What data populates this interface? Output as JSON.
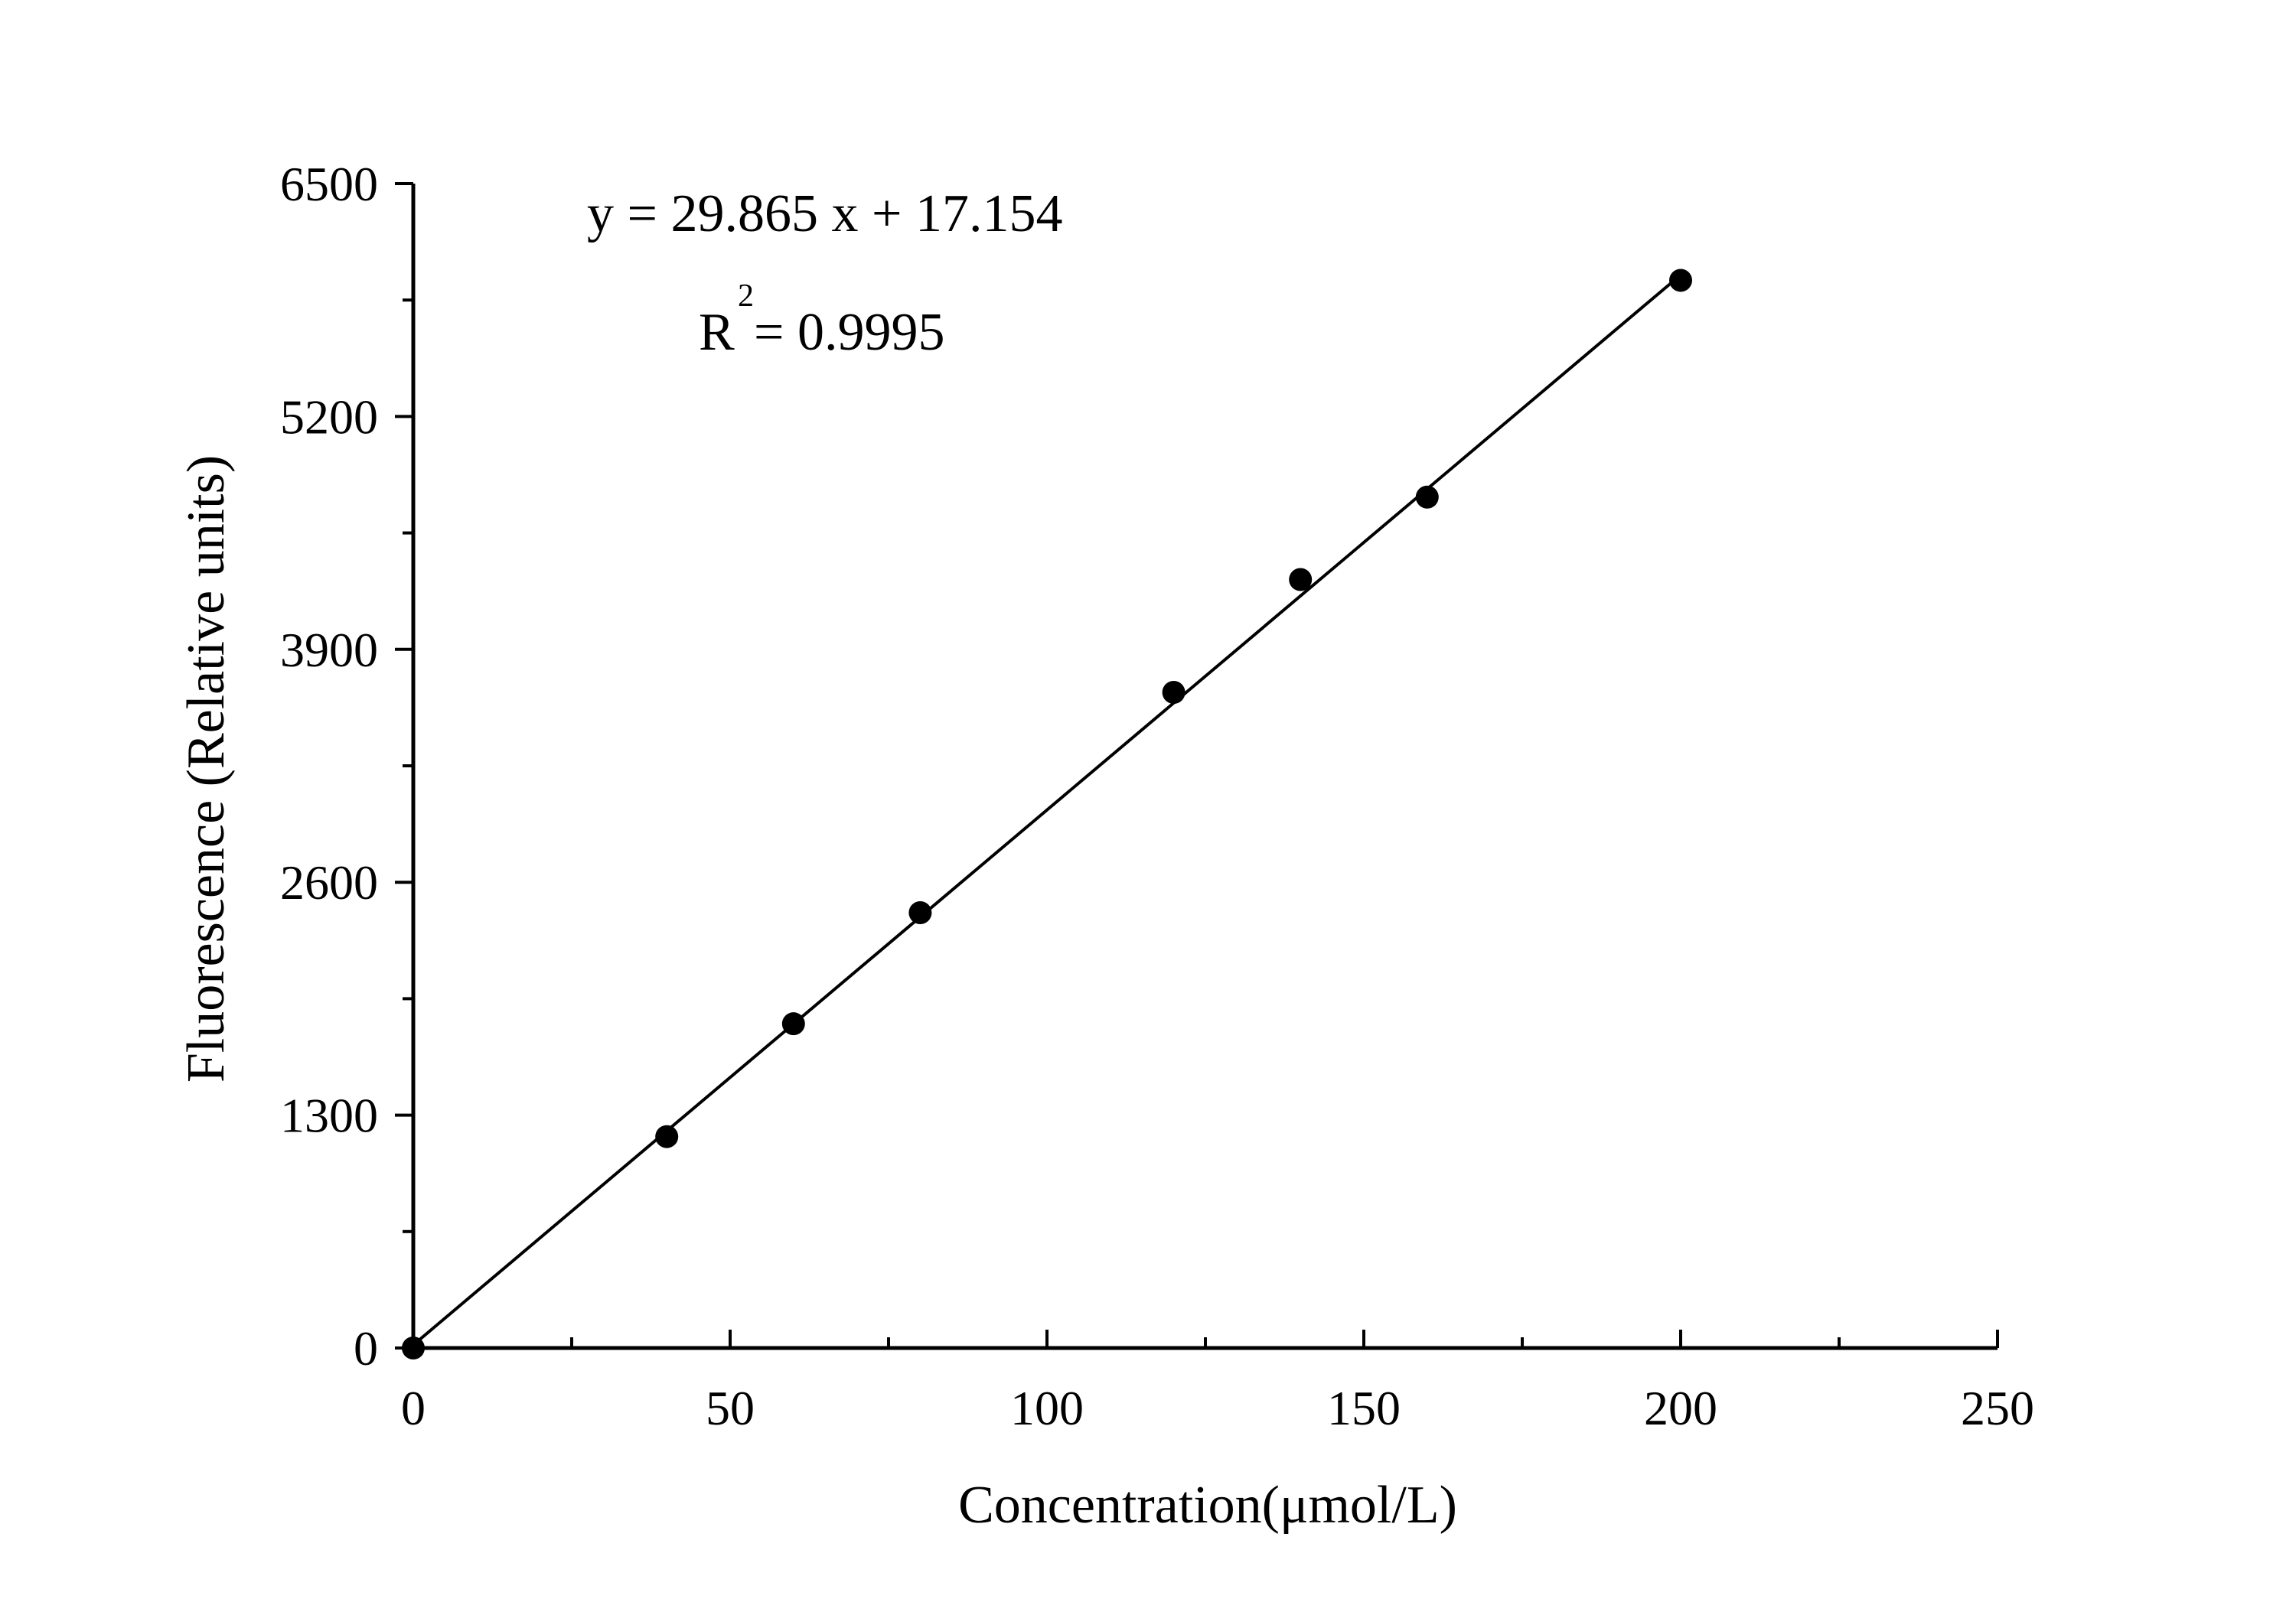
{
  "chart_data": {
    "type": "scatter",
    "title": "",
    "xlabel": "Concentration(μmol/L)",
    "ylabel": "Fluorescence (Relative units)",
    "xlim": [
      0,
      250
    ],
    "ylim": [
      0,
      6500
    ],
    "x_ticks": [
      0,
      50,
      100,
      150,
      200,
      250
    ],
    "x_tick_labels": [
      "0",
      "50",
      "100",
      "150",
      "200",
      "250"
    ],
    "x_minor_ticks": [
      25,
      75,
      125,
      175,
      225
    ],
    "y_ticks": [
      0,
      1300,
      2600,
      3900,
      5200,
      6500
    ],
    "y_tick_labels": [
      "0",
      "1300",
      "2600",
      "3900",
      "5200",
      "6500"
    ],
    "y_minor_ticks": [
      650,
      1950,
      3250,
      4550,
      5850
    ],
    "grid": false,
    "series": [
      {
        "x": [
          0,
          40,
          60,
          80,
          120,
          140,
          160,
          200
        ],
        "y": [
          0,
          1180,
          1810,
          2430,
          3660,
          4290,
          4750,
          5960
        ],
        "marker": "circle",
        "color": "#000000"
      }
    ],
    "fit": {
      "slope": 29.865,
      "intercept": 17.154,
      "x_range": [
        0,
        200
      ],
      "color": "#000000"
    },
    "annotations": {
      "equation": "y = 29.865 x + 17.154",
      "r2_base": "R",
      "r2_sup": "2",
      "r2_value": " = 0.9995"
    }
  }
}
